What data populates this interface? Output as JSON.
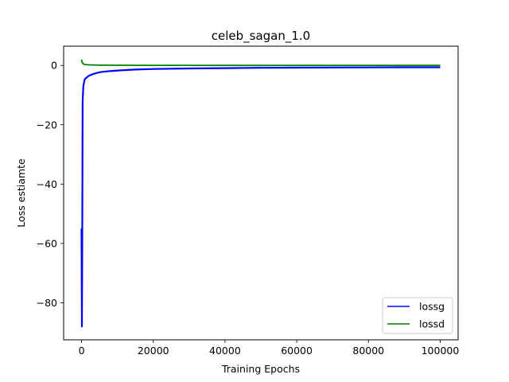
{
  "chart_data": {
    "type": "line",
    "title": "celeb_sagan_1.0",
    "xlabel": "Training Epochs",
    "ylabel": "Loss estiamte",
    "xlim": [
      -5000,
      105000
    ],
    "ylim": [
      -92.5,
      6.5
    ],
    "xticks": [
      0,
      20000,
      40000,
      60000,
      80000,
      100000
    ],
    "xtick_labels": [
      "0",
      "20000",
      "40000",
      "60000",
      "80000",
      "100000"
    ],
    "yticks": [
      0,
      -20,
      -40,
      -60,
      -80
    ],
    "ytick_labels": [
      "0",
      "−20",
      "−40",
      "−60",
      "−80"
    ],
    "grid": false,
    "legend_position": "lower-right",
    "series": [
      {
        "name": "lossg",
        "color": "#0000ff",
        "x": [
          0,
          100,
          200,
          300,
          500,
          800,
          1000,
          1500,
          2000,
          3000,
          4000,
          5000,
          7000,
          10000,
          15000,
          20000,
          30000,
          40000,
          50000,
          60000,
          70000,
          80000,
          90000,
          100000
        ],
        "y": [
          -55,
          -88,
          -60,
          -12,
          -7,
          -5,
          -4.5,
          -4,
          -3.5,
          -3,
          -2.6,
          -2.3,
          -2,
          -1.7,
          -1.4,
          -1.2,
          -1,
          -0.9,
          -0.8,
          -0.75,
          -0.7,
          -0.65,
          -0.6,
          -0.6
        ]
      },
      {
        "name": "lossd",
        "color": "#008000",
        "x": [
          0,
          100,
          300,
          500,
          1000,
          2000,
          5000,
          10000,
          20000,
          50000,
          100000
        ],
        "y": [
          2,
          1.2,
          0.8,
          0.5,
          0.3,
          0.2,
          0.1,
          0.05,
          0.03,
          0.02,
          0.01
        ]
      }
    ]
  }
}
